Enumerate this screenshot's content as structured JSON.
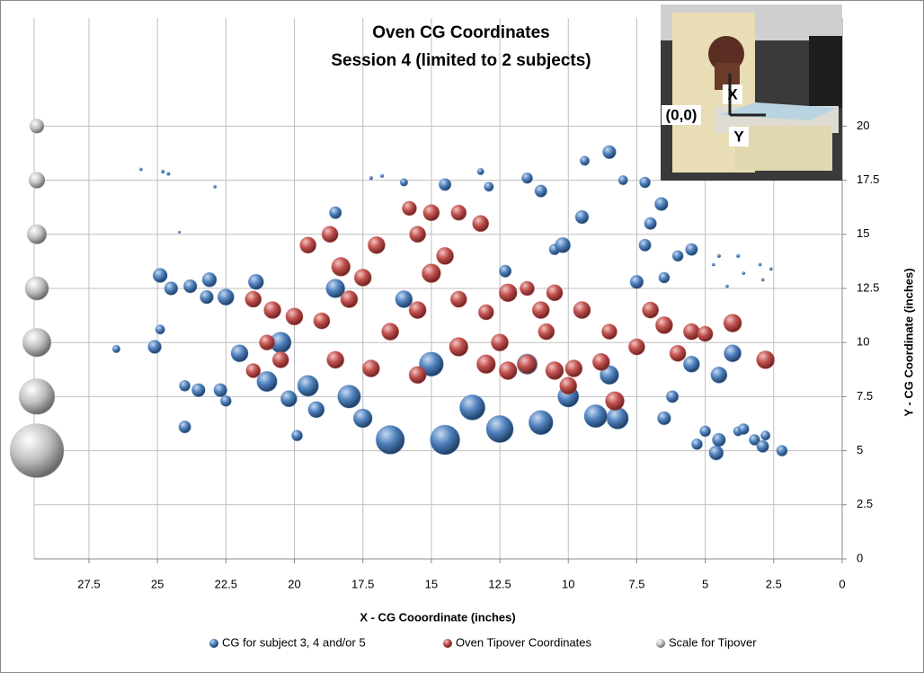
{
  "chart_data": {
    "type": "bubble",
    "title": "Oven CG Coordinates",
    "subtitle": "Session 4 (limited to 2 subjects)",
    "x_label": "X - CG Cooordinate (inches)",
    "y_label": "Y - CG Coordinate (inches)",
    "xlim": [
      29.5,
      0
    ],
    "xticks": [
      27.5,
      25,
      22.5,
      20,
      17.5,
      15,
      12.5,
      10,
      7.5,
      5,
      2.5,
      0
    ],
    "ylim": [
      0,
      25
    ],
    "yticks": [
      0,
      2.5,
      5,
      7.5,
      10,
      12.5,
      15,
      17.5,
      20
    ],
    "grid": true,
    "legend": "bottom",
    "inset_labels": [
      "X",
      "(0,0)",
      "Y"
    ],
    "series": [
      {
        "name": "CG for subject 3, 4 and/or 5",
        "color": "#4f81bd",
        "x": [
          25.6,
          24.8,
          24.6,
          22.9,
          24.2,
          26.5,
          24.9,
          25.1,
          24.9,
          24.5,
          23.8,
          23.1,
          23.2,
          24,
          23.5,
          24,
          22.7,
          22.5,
          22.5,
          21.4,
          20.2,
          19.9,
          19.2,
          18.5,
          16.8,
          17.2,
          16,
          14.5,
          13.2,
          12.9,
          11.5,
          11,
          10.5,
          9.4,
          8.5,
          8,
          7.2,
          6.6,
          7.0,
          7.2,
          6.0,
          5.5,
          4.5,
          4.7,
          3.8,
          3.6,
          3.0,
          2.6,
          2.9,
          4.2,
          6.5,
          7.5,
          4,
          4.5,
          5.5,
          6.2,
          6.5,
          5.3,
          5,
          4.6,
          4.5,
          3.8,
          3.2,
          2.9,
          2.2,
          3.6,
          2.8,
          9.5,
          10.2,
          12.3,
          15,
          14.5,
          16.5,
          12.5,
          11,
          9,
          8.2,
          17.5,
          19.5,
          21,
          18,
          13.5,
          10,
          8.5,
          16,
          20.5,
          22,
          18.5,
          11.5
        ],
        "values": [
          18,
          17.9,
          17.8,
          17.2,
          15.1,
          9.7,
          10.6,
          9.8,
          13.1,
          12.5,
          12.6,
          12.9,
          12.1,
          8.0,
          7.8,
          6.1,
          7.8,
          7.3,
          12.1,
          12.8,
          7.4,
          5.7,
          6.9,
          16.0,
          17.7,
          17.6,
          17.4,
          17.3,
          17.9,
          17.2,
          17.6,
          17,
          14.3,
          18.4,
          18.8,
          17.5,
          17.4,
          16.4,
          15.5,
          14.5,
          14.0,
          14.3,
          14.0,
          13.6,
          14.0,
          13.2,
          13.6,
          13.4,
          12.9,
          12.6,
          13,
          12.8,
          9.5,
          8.5,
          9,
          7.5,
          6.5,
          5.3,
          5.9,
          4.9,
          5.5,
          5.9,
          5.5,
          5.2,
          5.0,
          6,
          5.7,
          15.8,
          14.5,
          13.3,
          9,
          5.5,
          5.5,
          6,
          6.3,
          6.6,
          6.5,
          6.5,
          8,
          8.2,
          7.5,
          7,
          7.5,
          8.5,
          12,
          10,
          9.5,
          12.5,
          9
        ],
        "sizes": [
          0.3,
          0.4,
          0.4,
          0.3,
          0.2,
          2,
          3,
          6,
          7,
          6,
          6,
          7,
          6,
          4,
          6,
          5,
          6,
          4,
          9,
          8,
          9,
          4,
          9,
          5,
          0.4,
          0.4,
          2,
          5,
          1.5,
          3,
          4,
          5,
          4,
          3,
          6,
          3,
          4,
          6,
          5,
          5,
          4,
          5,
          0.4,
          0.3,
          0.4,
          0.3,
          0.3,
          0.3,
          0.3,
          0.3,
          4,
          6,
          10,
          9,
          9,
          5,
          6,
          4,
          4,
          7,
          6,
          3,
          4,
          5,
          4,
          4,
          3,
          6,
          8,
          5,
          20,
          30,
          28,
          25,
          20,
          18,
          16,
          12,
          15,
          14,
          18,
          22,
          15,
          12,
          10,
          15,
          10,
          12,
          14
        ]
      },
      {
        "name": "Oven Tipover Coordinates",
        "color": "#c0504d",
        "x": [
          21.5,
          20.8,
          20,
          19,
          21,
          20.5,
          21.5,
          18.5,
          17.2,
          19.5,
          18.7,
          18.3,
          17.5,
          17,
          18,
          15.8,
          15,
          14,
          13.2,
          15.5,
          14.5,
          15,
          14,
          15.5,
          16.5,
          14,
          12.5,
          13,
          12.2,
          11,
          10.8,
          11.5,
          12.2,
          10.5,
          9.8,
          10,
          8.8,
          8.3,
          8.5,
          7.5,
          7,
          6.5,
          5.5,
          5,
          4,
          2.8,
          10.5,
          11.5,
          13,
          15.5,
          9.5,
          6
        ],
        "values": [
          12,
          11.5,
          11.2,
          11,
          10,
          9.2,
          8.7,
          9.2,
          8.8,
          14.5,
          15,
          13.5,
          13,
          14.5,
          12,
          16.2,
          16,
          16,
          15.5,
          15,
          14,
          13.2,
          12,
          11.5,
          10.5,
          9.8,
          10,
          11.4,
          12.3,
          11.5,
          10.5,
          9,
          8.7,
          8.7,
          8.8,
          8,
          9.1,
          7.3,
          10.5,
          9.8,
          11.5,
          10.8,
          10.5,
          10.4,
          10.9,
          9.2,
          12.3,
          12.5,
          9,
          8.5,
          11.5,
          9.5
        ],
        "sizes": [
          9,
          10,
          10,
          9,
          8,
          9,
          7,
          10,
          10,
          9,
          9,
          12,
          10,
          10,
          10,
          7,
          9,
          8,
          9,
          9,
          10,
          12,
          9,
          10,
          10,
          12,
          10,
          8,
          11,
          10,
          9,
          12,
          11,
          11,
          10,
          10,
          10,
          12,
          8,
          9,
          9,
          10,
          9,
          8,
          11,
          11,
          9,
          7,
          12,
          10,
          10,
          9
        ]
      },
      {
        "name": "Scale for Tipover",
        "color": "#bfbfbf",
        "x": [
          29.4,
          29.4,
          29.4,
          29.4,
          29.4,
          29.4,
          29.4
        ],
        "values": [
          5,
          7.5,
          10,
          12.5,
          15,
          17.5,
          20
        ],
        "sizes": [
          100,
          44,
          28,
          19,
          13,
          9,
          7
        ]
      }
    ]
  }
}
